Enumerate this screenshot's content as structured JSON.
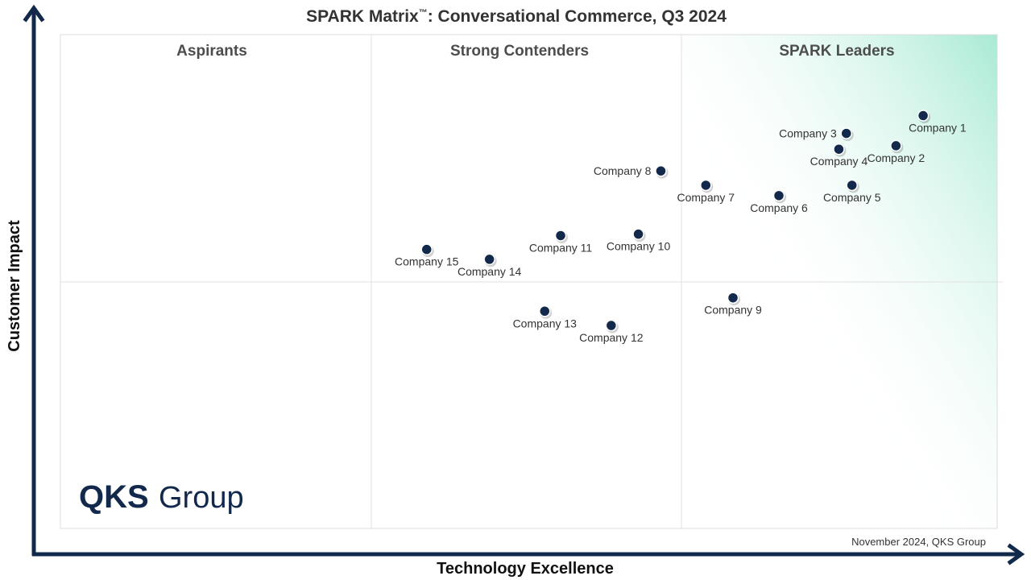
{
  "chart_data": {
    "type": "scatter",
    "title": "SPARK Matrix",
    "title_trademark": "™",
    "title_suffix": ": Conversational Commerce, Q3 2024",
    "xlabel": "Technology Excellence",
    "ylabel": "Customer Impact",
    "xlim": [
      0,
      100
    ],
    "ylim": [
      0,
      100
    ],
    "grid": false,
    "quadrant_dividers": {
      "x": [
        33.3,
        66.6
      ],
      "y": 50
    },
    "zones": [
      {
        "name": "aspirants",
        "label": "Aspirants"
      },
      {
        "name": "strong-contenders",
        "label": "Strong Contenders"
      },
      {
        "name": "spark-leaders",
        "label": "SPARK Leaders"
      }
    ],
    "points": [
      {
        "label": "Company 1",
        "x": 92.1,
        "y": 83.6,
        "label_pos": "below-right"
      },
      {
        "label": "Company 2",
        "x": 89.2,
        "y": 77.5,
        "label_pos": "below"
      },
      {
        "label": "Company 3",
        "x": 83.9,
        "y": 80.0,
        "label_pos": "left"
      },
      {
        "label": "Company 4",
        "x": 83.1,
        "y": 76.8,
        "label_pos": "below"
      },
      {
        "label": "Company 5",
        "x": 84.5,
        "y": 69.5,
        "label_pos": "below"
      },
      {
        "label": "Company 6",
        "x": 76.7,
        "y": 67.4,
        "label_pos": "below"
      },
      {
        "label": "Company 7",
        "x": 68.9,
        "y": 69.5,
        "label_pos": "below"
      },
      {
        "label": "Company 8",
        "x": 64.1,
        "y": 72.4,
        "label_pos": "left"
      },
      {
        "label": "Company 9",
        "x": 71.8,
        "y": 46.7,
        "label_pos": "below"
      },
      {
        "label": "Company 10",
        "x": 61.7,
        "y": 59.6,
        "label_pos": "below"
      },
      {
        "label": "Company 11",
        "x": 53.4,
        "y": 59.3,
        "label_pos": "below"
      },
      {
        "label": "Company 12",
        "x": 58.8,
        "y": 41.1,
        "label_pos": "below"
      },
      {
        "label": "Company 13",
        "x": 51.7,
        "y": 44.0,
        "label_pos": "below"
      },
      {
        "label": "Company 14",
        "x": 45.8,
        "y": 54.5,
        "label_pos": "below"
      },
      {
        "label": "Company 15",
        "x": 39.1,
        "y": 56.5,
        "label_pos": "below"
      }
    ]
  },
  "footer": {
    "credit": "November 2024, QKS Group"
  },
  "logo": {
    "bold": "QKS",
    "light": "Group"
  },
  "colors": {
    "point_fill": "#13294b",
    "axis": "#13294b",
    "leader_gradient": "#a8ead4"
  }
}
